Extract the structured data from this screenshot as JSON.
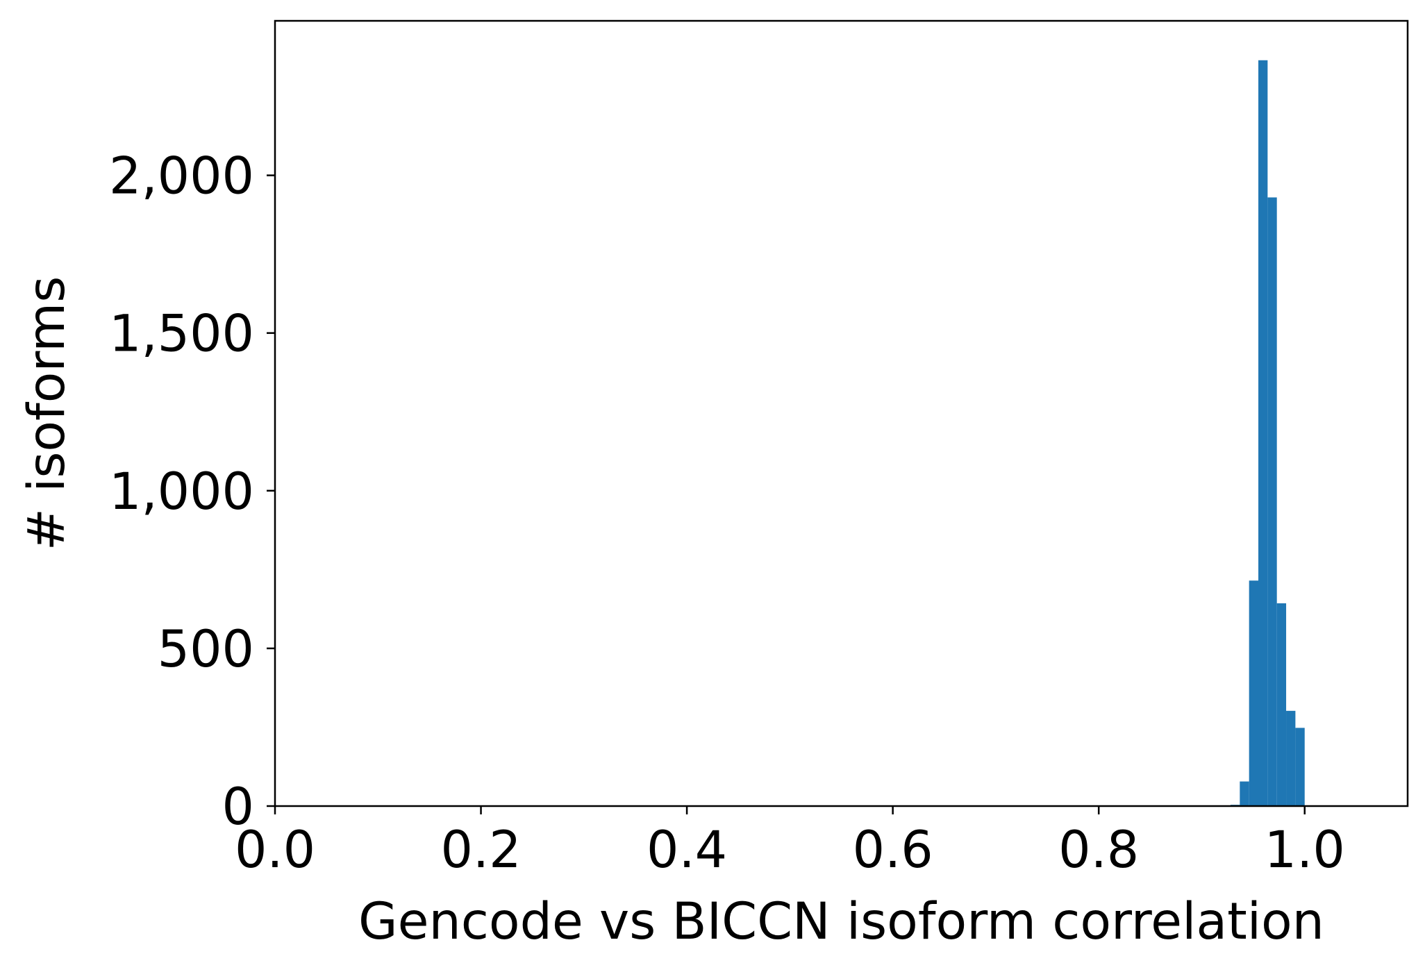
{
  "chart_data": {
    "type": "bar",
    "title": "",
    "xlabel": "Gencode vs BICCN isoform correlation",
    "ylabel": "# isoforms",
    "xlim": [
      0.0,
      1.1
    ],
    "ylim": [
      0,
      2490
    ],
    "grid": false,
    "x_ticks": [
      "0.0",
      "0.2",
      "0.4",
      "0.6",
      "0.8",
      "1.0"
    ],
    "y_ticks": [
      "0",
      "500",
      "1,000",
      "1,500",
      "2,000"
    ],
    "bin_width": 0.009,
    "color": "#1f77b4",
    "bins": [
      {
        "start": 0.928,
        "end": 0.937,
        "count": 4
      },
      {
        "start": 0.937,
        "end": 0.946,
        "count": 78
      },
      {
        "start": 0.946,
        "end": 0.955,
        "count": 715
      },
      {
        "start": 0.955,
        "end": 0.964,
        "count": 2365
      },
      {
        "start": 0.964,
        "end": 0.973,
        "count": 1930
      },
      {
        "start": 0.973,
        "end": 0.982,
        "count": 643
      },
      {
        "start": 0.982,
        "end": 0.991,
        "count": 302
      },
      {
        "start": 0.991,
        "end": 1.0,
        "count": 248
      }
    ]
  }
}
